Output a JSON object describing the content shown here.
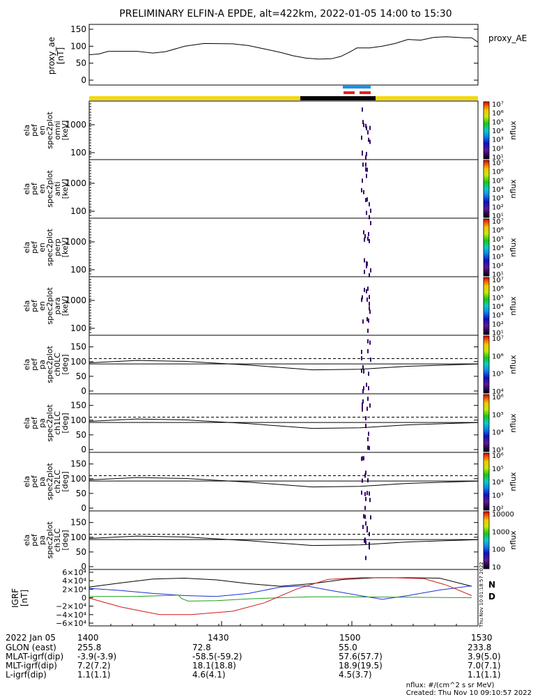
{
  "title": "PRELIMINARY ELFIN-A EPDE, alt=422km, 2022-01-05 14:00 to 15:30",
  "proxy_ae": {
    "ylabel": [
      "proxy_ae",
      "[nT]"
    ],
    "legend": "proxy_AE",
    "ylim": [
      0,
      150
    ],
    "yticks": [
      "150",
      "100",
      "50",
      "0"
    ],
    "values": [
      [
        0,
        75
      ],
      [
        3,
        77
      ],
      [
        6,
        85
      ],
      [
        15,
        85
      ],
      [
        20,
        80
      ],
      [
        24,
        84
      ],
      [
        30,
        100
      ],
      [
        36,
        108
      ],
      [
        45,
        107
      ],
      [
        50,
        102
      ],
      [
        55,
        92
      ],
      [
        60,
        82
      ],
      [
        64,
        72
      ],
      [
        68,
        65
      ],
      [
        72,
        62
      ],
      [
        76,
        63
      ],
      [
        79,
        70
      ],
      [
        82,
        84
      ],
      [
        84,
        95
      ],
      [
        88,
        95
      ],
      [
        92,
        100
      ],
      [
        96,
        108
      ],
      [
        100,
        120
      ],
      [
        104,
        118
      ],
      [
        108,
        126
      ],
      [
        112,
        128
      ],
      [
        118,
        125
      ],
      [
        120,
        125
      ],
      [
        122,
        112
      ]
    ]
  },
  "status_bars": {
    "blue": "#1f8fe8",
    "red": "#e8201f",
    "yellow": "#f5d90a",
    "black": "#000000"
  },
  "chart_data": [
    {
      "type": "heatmap",
      "panel": "ela pef en spec2plot omni",
      "ylabel": [
        "ela",
        "pef",
        "en",
        "spec2plot",
        "omni",
        "[keV]"
      ],
      "yticks": [
        "1000",
        "100"
      ],
      "yscale": "log",
      "colorbar": {
        "label": "nflux",
        "ticks": [
          "10⁷",
          "10⁶",
          "10⁵",
          "10⁴",
          "10³",
          "10²",
          "10¹"
        ]
      }
    },
    {
      "type": "heatmap",
      "panel": "ela pef en spec2plot anti",
      "ylabel": [
        "ela",
        "pef",
        "en",
        "spec2plot",
        "anti",
        "[keV]"
      ],
      "yticks": [
        "1000",
        "100"
      ],
      "yscale": "log",
      "colorbar": {
        "label": "nflux",
        "ticks": [
          "10⁷",
          "10⁶",
          "10⁵",
          "10⁴",
          "10³",
          "10²",
          "10¹"
        ]
      }
    },
    {
      "type": "heatmap",
      "panel": "ela pef en spec2plot perp",
      "ylabel": [
        "ela",
        "pef",
        "en",
        "spec2plot",
        "perp",
        "[keV]"
      ],
      "yticks": [
        "1000",
        "100"
      ],
      "yscale": "log",
      "colorbar": {
        "label": "nflux",
        "ticks": [
          "10⁷",
          "10⁶",
          "10⁵",
          "10⁴",
          "10³",
          "10²",
          "10¹"
        ]
      }
    },
    {
      "type": "heatmap",
      "panel": "ela pef en spec2plot para",
      "ylabel": [
        "ela",
        "pef",
        "en",
        "spec2plot",
        "para",
        "[keV]"
      ],
      "yticks": [
        "1000",
        "100"
      ],
      "yscale": "log",
      "colorbar": {
        "label": "nflux",
        "ticks": [
          "10⁷",
          "10⁶",
          "10⁵",
          "10⁴",
          "10³",
          "10²",
          "10¹"
        ]
      }
    },
    {
      "type": "heatmap",
      "panel": "ela pef pa spec2plot ch0LC",
      "ylabel": [
        "ela",
        "pef",
        "pa",
        "spec2plot",
        "ch0LC",
        "[deg]"
      ],
      "yticks": [
        "150",
        "100",
        "50",
        "0"
      ],
      "ylim": [
        0,
        180
      ],
      "colorbar": {
        "label": "nflux",
        "ticks": [
          "10⁷",
          "10⁶",
          "10⁵",
          "10⁴"
        ]
      }
    },
    {
      "type": "heatmap",
      "panel": "ela pef pa spec2plot ch1LC",
      "ylabel": [
        "ela",
        "pef",
        "pa",
        "spec2plot",
        "ch1LC",
        "[deg]"
      ],
      "yticks": [
        "150",
        "100",
        "50",
        "0"
      ],
      "ylim": [
        0,
        180
      ],
      "colorbar": {
        "label": "nflux",
        "ticks": [
          "10⁶",
          "10⁵",
          "10⁴",
          "10³"
        ]
      }
    },
    {
      "type": "heatmap",
      "panel": "ela pef pa spec2plot ch2LC",
      "ylabel": [
        "ela",
        "pef",
        "pa",
        "spec2plot",
        "ch2LC",
        "[deg]"
      ],
      "yticks": [
        "150",
        "100",
        "50",
        "0"
      ],
      "ylim": [
        0,
        180
      ],
      "colorbar": {
        "label": "nflux",
        "ticks": [
          "10⁶",
          "10⁵",
          "10⁴",
          "10³",
          "10²"
        ]
      }
    },
    {
      "type": "heatmap",
      "panel": "ela pef pa spec2plot ch3LC",
      "ylabel": [
        "ela",
        "pef",
        "pa",
        "spec2plot",
        "ch3LC",
        "[deg]"
      ],
      "yticks": [
        "150",
        "100",
        "50",
        "0"
      ],
      "ylim": [
        0,
        180
      ],
      "colorbar": {
        "label": "nflux",
        "ticks": [
          "10000",
          "1000",
          "100",
          "10"
        ]
      }
    },
    {
      "type": "line",
      "panel": "IGRF",
      "ylabel": [
        "IGRF",
        "[nT]"
      ],
      "yticks": [
        "6×10⁴",
        "4×10⁴",
        "2×10⁴",
        "0",
        "−2×10⁴",
        "−4×10⁴",
        "−6×10⁴"
      ],
      "ylim": [
        -60000,
        60000
      ],
      "legend": [
        "N",
        "D"
      ],
      "series": [
        {
          "color": "#000000",
          "values": [
            [
              0,
              25000
            ],
            [
              10,
              35000
            ],
            [
              20,
              44000
            ],
            [
              30,
              46000
            ],
            [
              40,
              42000
            ],
            [
              50,
              33000
            ],
            [
              60,
              27000
            ],
            [
              70,
              33000
            ],
            [
              80,
              43000
            ],
            [
              90,
              47000
            ],
            [
              100,
              47000
            ],
            [
              110,
              46000
            ],
            [
              120,
              27000
            ]
          ]
        },
        {
          "color": "#1c2fd0",
          "values": [
            [
              0,
              22000
            ],
            [
              10,
              17000
            ],
            [
              20,
              10000
            ],
            [
              30,
              5000
            ],
            [
              40,
              3000
            ],
            [
              50,
              10000
            ],
            [
              60,
              25000
            ],
            [
              68,
              28000
            ],
            [
              75,
              18000
            ],
            [
              85,
              5000
            ],
            [
              92,
              -4000
            ],
            [
              100,
              5000
            ],
            [
              110,
              18000
            ],
            [
              120,
              28000
            ]
          ]
        },
        {
          "color": "#1aa01a",
          "values": [
            [
              0,
              3000
            ],
            [
              15,
              3000
            ],
            [
              28,
              6000
            ],
            [
              29,
              -2000
            ],
            [
              31,
              -8000
            ],
            [
              40,
              -7000
            ],
            [
              50,
              -3000
            ],
            [
              60,
              0
            ],
            [
              70,
              2000
            ],
            [
              80,
              2000
            ],
            [
              100,
              1000
            ],
            [
              120,
              0
            ]
          ]
        },
        {
          "color": "#d01a1a",
          "values": [
            [
              0,
              -1000
            ],
            [
              10,
              -22000
            ],
            [
              22,
              -40000
            ],
            [
              32,
              -40000
            ],
            [
              45,
              -32000
            ],
            [
              55,
              -12000
            ],
            [
              65,
              20000
            ],
            [
              75,
              43000
            ],
            [
              85,
              47000
            ],
            [
              95,
              47000
            ],
            [
              105,
              45000
            ],
            [
              112,
              30000
            ],
            [
              120,
              5000
            ]
          ]
        }
      ]
    }
  ],
  "x_axis": {
    "labels": [
      "1400",
      "1430",
      "1500",
      "1530"
    ],
    "date": "2022 Jan 05"
  },
  "ephemeris": [
    {
      "label": "GLON (east)",
      "values": [
        "255.8",
        "72.8",
        "55.0",
        "233.8"
      ]
    },
    {
      "label": "MLAT-igrf(dip)",
      "values": [
        "-3.9(-3.9)",
        "-58.5(-59.2)",
        "57.6(57.7)",
        "3.9(5.0)"
      ]
    },
    {
      "label": "MLT-igrf(dip)",
      "values": [
        "7.2(7.2)",
        "18.1(18.8)",
        "18.9(19.5)",
        "7.0(7.1)"
      ]
    },
    {
      "label": "L-igrf(dip)",
      "values": [
        "1.1(1.1)",
        "4.6(4.1)",
        "4.5(3.7)",
        "1.1(1.1)"
      ]
    }
  ],
  "footer": {
    "units": "nflux: #/(cm^2 s sr MeV)",
    "created": "Created: Thu Nov 10 09:10:57 2022",
    "side_stamp": "Thu Nov 10 01:18:57 2022"
  }
}
